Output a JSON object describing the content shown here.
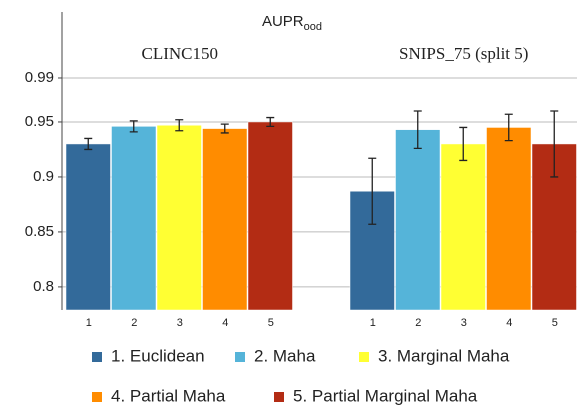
{
  "chart_data": {
    "type": "bar",
    "title": "AUPR",
    "title_subscript": "ood",
    "categories": [
      "CLINC150",
      "SNIPS_75 (split 5)"
    ],
    "bar_labels": [
      "1",
      "2",
      "3",
      "4",
      "5"
    ],
    "series": [
      {
        "name": "1. Euclidean",
        "color": "#336a9a",
        "values": [
          0.93,
          0.887
        ],
        "errors": [
          0.005,
          0.03
        ]
      },
      {
        "name": "2. Maha",
        "color": "#55b4d9",
        "values": [
          0.946,
          0.943
        ],
        "errors": [
          0.005,
          0.017
        ]
      },
      {
        "name": "3. Marginal Maha",
        "color": "#ffff33",
        "values": [
          0.947,
          0.93
        ],
        "errors": [
          0.005,
          0.015
        ]
      },
      {
        "name": "4. Partial Maha",
        "color": "#ff8c00",
        "values": [
          0.944,
          0.945
        ],
        "errors": [
          0.004,
          0.012
        ]
      },
      {
        "name": "5. Partial Marginal Maha",
        "color": "#b32c14",
        "values": [
          0.95,
          0.93
        ],
        "errors": [
          0.004,
          0.03
        ]
      }
    ],
    "ylim": [
      0.779,
      1.05
    ],
    "yticks": [
      0.8,
      0.85,
      0.9,
      0.95,
      0.99
    ],
    "grid": true
  }
}
